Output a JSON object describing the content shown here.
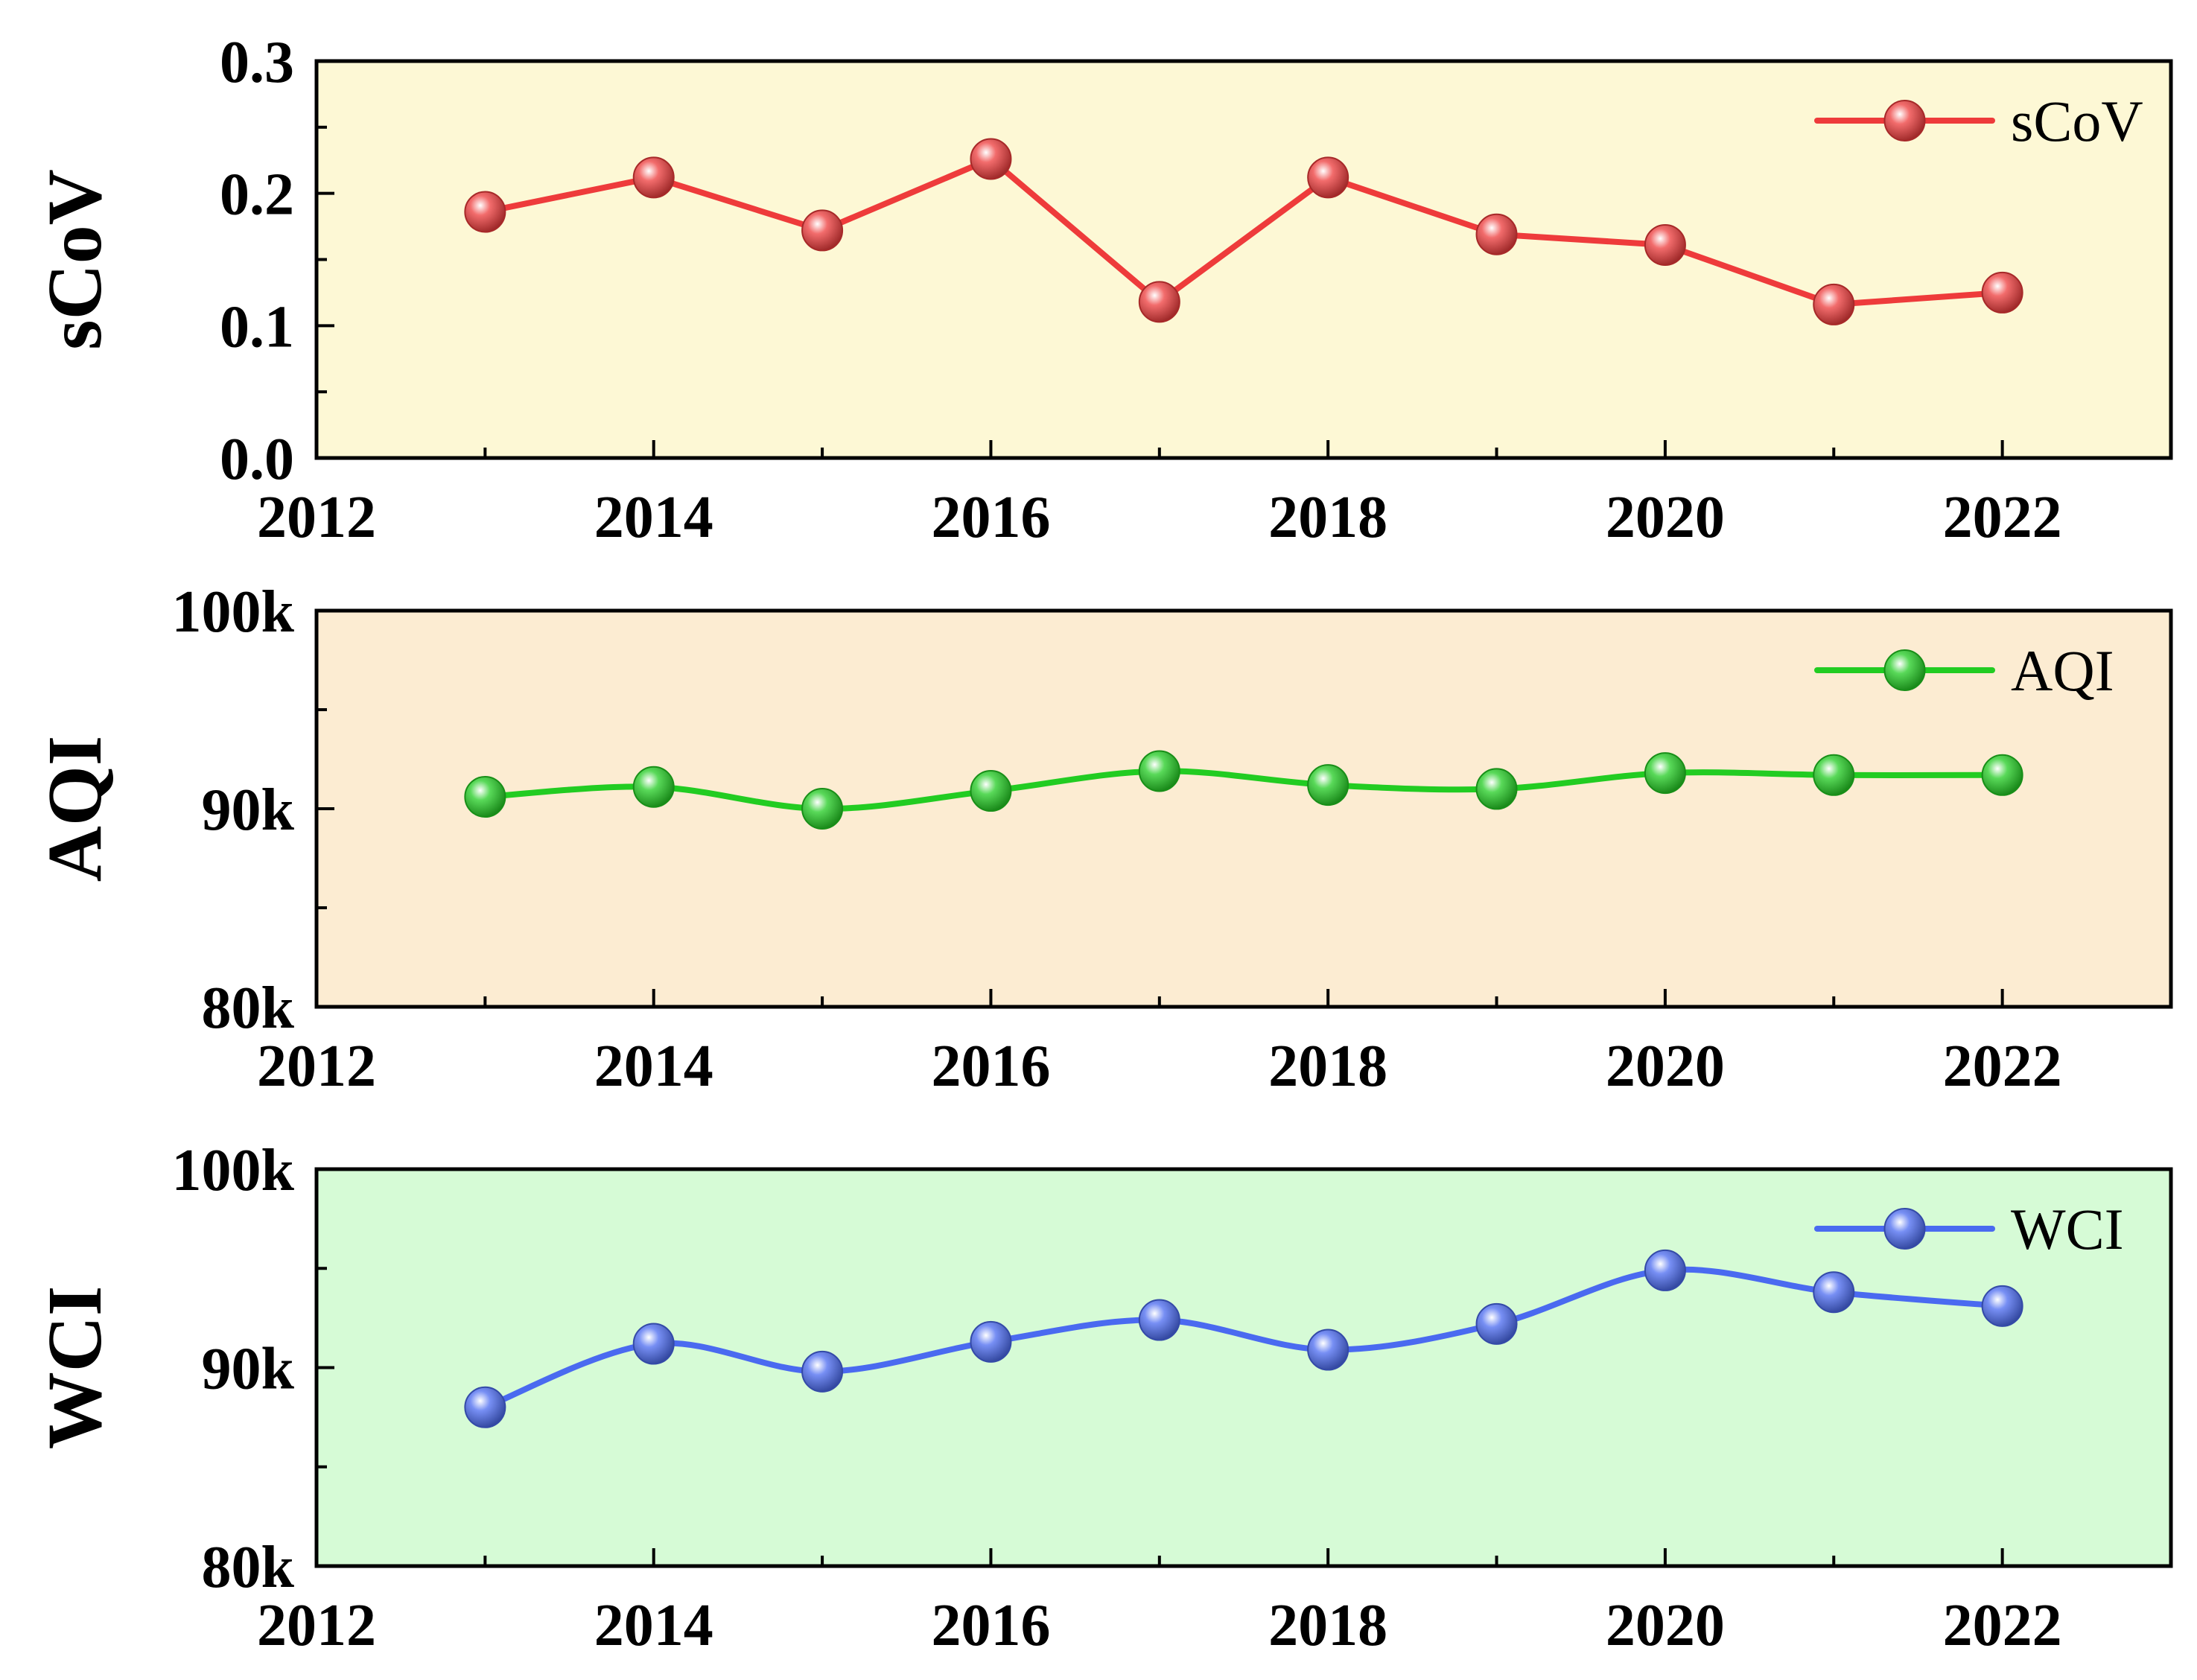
{
  "chart_data": [
    {
      "type": "line",
      "ylabel": "sCoV",
      "xlim": [
        2012,
        2023
      ],
      "xticks": [
        2012,
        2014,
        2016,
        2018,
        2020,
        2022
      ],
      "xtick_labels": [
        "2012",
        "2014",
        "2016",
        "2018",
        "2020",
        "2022"
      ],
      "ylim": [
        0.0,
        0.3
      ],
      "yticks": [
        0.0,
        0.1,
        0.2,
        0.3
      ],
      "ytick_labels": [
        "0.0",
        "0.1",
        "0.2",
        "0.3"
      ],
      "background_color": "#fdf8d5",
      "smooth": false,
      "legend_position": "top-right",
      "series": [
        {
          "name": "sCoV",
          "color": "#ee3b3b",
          "x": [
            2013,
            2014,
            2015,
            2016,
            2017,
            2018,
            2019,
            2020,
            2021,
            2022
          ],
          "values": [
            0.186,
            0.212,
            0.172,
            0.226,
            0.118,
            0.212,
            0.169,
            0.161,
            0.116,
            0.125
          ]
        }
      ]
    },
    {
      "type": "line",
      "ylabel": "AQI",
      "xlim": [
        2012,
        2023
      ],
      "xticks": [
        2012,
        2014,
        2016,
        2018,
        2020,
        2022
      ],
      "xtick_labels": [
        "2012",
        "2014",
        "2016",
        "2018",
        "2020",
        "2022"
      ],
      "ylim": [
        80000,
        100000
      ],
      "yticks": [
        80000,
        90000,
        100000
      ],
      "ytick_labels": [
        "80k",
        "90k",
        "100k"
      ],
      "minor_yticks": [
        85000,
        95000
      ],
      "background_color": "#fcecd2",
      "smooth": true,
      "legend_position": "top-right",
      "series": [
        {
          "name": "AQI",
          "color": "#22cc22",
          "x": [
            2013,
            2014,
            2015,
            2016,
            2017,
            2018,
            2019,
            2020,
            2021,
            2022
          ],
          "values": [
            90600,
            91100,
            90000,
            90900,
            91900,
            91200,
            91000,
            91800,
            91700,
            91700
          ]
        }
      ]
    },
    {
      "type": "line",
      "ylabel": "WCI",
      "xlim": [
        2012,
        2023
      ],
      "xticks": [
        2012,
        2014,
        2016,
        2018,
        2020,
        2022
      ],
      "xtick_labels": [
        "2012",
        "2014",
        "2016",
        "2018",
        "2020",
        "2022"
      ],
      "ylim": [
        80000,
        100000
      ],
      "yticks": [
        80000,
        90000,
        100000
      ],
      "ytick_labels": [
        "80k",
        "90k",
        "100k"
      ],
      "minor_yticks": [
        85000,
        95000
      ],
      "background_color": "#d6fbd6",
      "smooth": true,
      "legend_position": "top-right",
      "series": [
        {
          "name": "WCI",
          "color": "#4a6af0",
          "x": [
            2013,
            2014,
            2015,
            2016,
            2017,
            2018,
            2019,
            2020,
            2021,
            2022
          ],
          "values": [
            88000,
            91200,
            89800,
            91300,
            92400,
            90900,
            92200,
            94900,
            93800,
            93100
          ]
        }
      ]
    }
  ]
}
